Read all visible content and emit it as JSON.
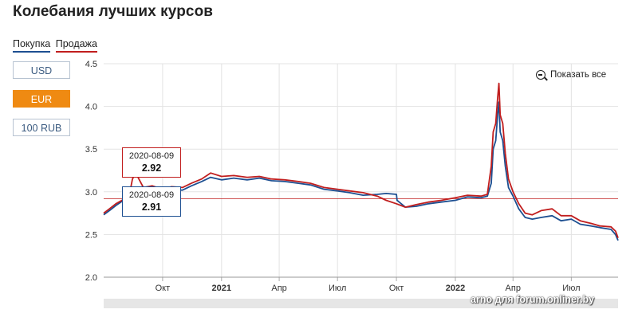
{
  "title": "Колебания лучших курсов",
  "legend": {
    "buy": "Покупка",
    "sell": "Продажа"
  },
  "currency_buttons": [
    {
      "label": "USD",
      "active": false
    },
    {
      "label": "EUR",
      "active": true
    },
    {
      "label": "100 RUB",
      "active": false
    }
  ],
  "reset_zoom_label": "Показать все",
  "tooltips": {
    "sell": {
      "date": "2020-08-09",
      "value": "2.92"
    },
    "buy": {
      "date": "2020-08-09",
      "value": "2.91"
    }
  },
  "watermark": "arno для forum.onliner.by",
  "colors": {
    "buy": "#1d4f91",
    "sell": "#c11e1e",
    "active": "#ef8a12"
  },
  "chart_data": {
    "type": "line",
    "y_ticks": [
      "2.0",
      "2.5",
      "3.0",
      "3.5",
      "4.0",
      "4.5"
    ],
    "ylim": [
      2.0,
      4.5
    ],
    "x_ticks": [
      {
        "label": "Окт",
        "date": "2020-10-01",
        "bold": false
      },
      {
        "label": "2021",
        "date": "2021-01-01",
        "bold": true
      },
      {
        "label": "Апр",
        "date": "2021-04-01",
        "bold": false
      },
      {
        "label": "Июл",
        "date": "2021-07-01",
        "bold": false
      },
      {
        "label": "Окт",
        "date": "2021-10-01",
        "bold": false
      },
      {
        "label": "2022",
        "date": "2022-01-01",
        "bold": true
      },
      {
        "label": "Апр",
        "date": "2022-04-01",
        "bold": false
      },
      {
        "label": "Июл",
        "date": "2022-07-01",
        "bold": false
      }
    ],
    "xlim": [
      "2020-07-01",
      "2022-09-12"
    ],
    "plot_line": 2.92,
    "series": [
      {
        "name": "Покупка",
        "points": [
          [
            "2020-07-01",
            2.73
          ],
          [
            "2020-07-10",
            2.78
          ],
          [
            "2020-07-20",
            2.84
          ],
          [
            "2020-08-01",
            2.9
          ],
          [
            "2020-08-09",
            2.91
          ],
          [
            "2020-08-20",
            2.95
          ],
          [
            "2020-09-01",
            2.97
          ],
          [
            "2020-09-15",
            3.03
          ],
          [
            "2020-10-01",
            3.0
          ],
          [
            "2020-10-15",
            3.02
          ],
          [
            "2020-11-01",
            3.02
          ],
          [
            "2020-11-15",
            3.07
          ],
          [
            "2020-12-01",
            3.12
          ],
          [
            "2020-12-15",
            3.17
          ],
          [
            "2021-01-01",
            3.14
          ],
          [
            "2021-01-20",
            3.16
          ],
          [
            "2021-02-10",
            3.14
          ],
          [
            "2021-03-01",
            3.16
          ],
          [
            "2021-03-20",
            3.13
          ],
          [
            "2021-04-10",
            3.12
          ],
          [
            "2021-05-01",
            3.1
          ],
          [
            "2021-05-20",
            3.08
          ],
          [
            "2021-06-10",
            3.03
          ],
          [
            "2021-07-01",
            3.01
          ],
          [
            "2021-07-20",
            2.99
          ],
          [
            "2021-08-10",
            2.96
          ],
          [
            "2021-09-01",
            2.97
          ],
          [
            "2021-09-15",
            2.98
          ],
          [
            "2021-10-01",
            2.97
          ],
          [
            "2021-10-02",
            2.9
          ],
          [
            "2021-10-15",
            2.82
          ],
          [
            "2021-11-01",
            2.83
          ],
          [
            "2021-11-20",
            2.86
          ],
          [
            "2021-12-10",
            2.88
          ],
          [
            "2022-01-01",
            2.9
          ],
          [
            "2022-01-20",
            2.94
          ],
          [
            "2022-02-10",
            2.93
          ],
          [
            "2022-02-20",
            2.95
          ],
          [
            "2022-02-26",
            3.1
          ],
          [
            "2022-03-01",
            3.5
          ],
          [
            "2022-03-05",
            3.6
          ],
          [
            "2022-03-08",
            3.9
          ],
          [
            "2022-03-10",
            4.05
          ],
          [
            "2022-03-12",
            3.7
          ],
          [
            "2022-03-16",
            3.6
          ],
          [
            "2022-03-20",
            3.3
          ],
          [
            "2022-03-25",
            3.05
          ],
          [
            "2022-04-01",
            2.95
          ],
          [
            "2022-04-10",
            2.8
          ],
          [
            "2022-04-20",
            2.7
          ],
          [
            "2022-05-01",
            2.68
          ],
          [
            "2022-05-15",
            2.7
          ],
          [
            "2022-06-01",
            2.72
          ],
          [
            "2022-06-15",
            2.66
          ],
          [
            "2022-07-01",
            2.68
          ],
          [
            "2022-07-15",
            2.62
          ],
          [
            "2022-08-01",
            2.6
          ],
          [
            "2022-08-15",
            2.58
          ],
          [
            "2022-09-01",
            2.56
          ],
          [
            "2022-09-08",
            2.5
          ],
          [
            "2022-09-12",
            2.43
          ]
        ]
      },
      {
        "name": "Продажа",
        "points": [
          [
            "2020-07-01",
            2.75
          ],
          [
            "2020-07-10",
            2.8
          ],
          [
            "2020-07-20",
            2.86
          ],
          [
            "2020-08-01",
            2.91
          ],
          [
            "2020-08-09",
            2.92
          ],
          [
            "2020-08-15",
            3.15
          ],
          [
            "2020-08-20",
            3.22
          ],
          [
            "2020-09-01",
            3.05
          ],
          [
            "2020-09-15",
            3.07
          ],
          [
            "2020-10-01",
            3.03
          ],
          [
            "2020-10-15",
            3.06
          ],
          [
            "2020-11-01",
            3.05
          ],
          [
            "2020-11-15",
            3.1
          ],
          [
            "2020-12-01",
            3.15
          ],
          [
            "2020-12-15",
            3.22
          ],
          [
            "2021-01-01",
            3.18
          ],
          [
            "2021-01-20",
            3.19
          ],
          [
            "2021-02-10",
            3.17
          ],
          [
            "2021-03-01",
            3.18
          ],
          [
            "2021-03-20",
            3.15
          ],
          [
            "2021-04-10",
            3.14
          ],
          [
            "2021-05-01",
            3.12
          ],
          [
            "2021-05-20",
            3.1
          ],
          [
            "2021-06-10",
            3.05
          ],
          [
            "2021-07-01",
            3.03
          ],
          [
            "2021-07-20",
            3.01
          ],
          [
            "2021-08-10",
            2.99
          ],
          [
            "2021-09-01",
            2.95
          ],
          [
            "2021-09-15",
            2.9
          ],
          [
            "2021-10-01",
            2.86
          ],
          [
            "2021-10-15",
            2.82
          ],
          [
            "2021-11-01",
            2.85
          ],
          [
            "2021-11-20",
            2.88
          ],
          [
            "2021-12-10",
            2.9
          ],
          [
            "2022-01-01",
            2.93
          ],
          [
            "2022-01-20",
            2.96
          ],
          [
            "2022-02-10",
            2.95
          ],
          [
            "2022-02-20",
            2.97
          ],
          [
            "2022-02-26",
            3.3
          ],
          [
            "2022-03-01",
            3.7
          ],
          [
            "2022-03-05",
            3.8
          ],
          [
            "2022-03-08",
            4.1
          ],
          [
            "2022-03-10",
            4.27
          ],
          [
            "2022-03-12",
            3.9
          ],
          [
            "2022-03-16",
            3.8
          ],
          [
            "2022-03-20",
            3.45
          ],
          [
            "2022-03-25",
            3.15
          ],
          [
            "2022-04-01",
            3.0
          ],
          [
            "2022-04-10",
            2.86
          ],
          [
            "2022-04-20",
            2.75
          ],
          [
            "2022-05-01",
            2.73
          ],
          [
            "2022-05-15",
            2.78
          ],
          [
            "2022-06-01",
            2.8
          ],
          [
            "2022-06-15",
            2.72
          ],
          [
            "2022-07-01",
            2.72
          ],
          [
            "2022-07-15",
            2.66
          ],
          [
            "2022-08-01",
            2.63
          ],
          [
            "2022-08-15",
            2.6
          ],
          [
            "2022-09-01",
            2.59
          ],
          [
            "2022-09-08",
            2.54
          ],
          [
            "2022-09-12",
            2.46
          ]
        ]
      }
    ]
  }
}
